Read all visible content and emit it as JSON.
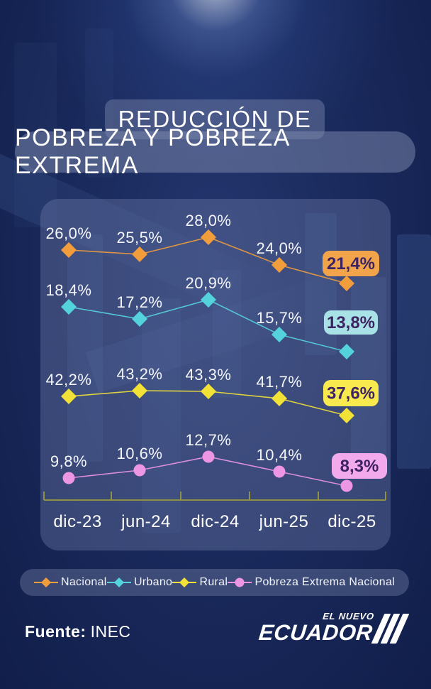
{
  "title": {
    "line1": "REDUCCIÓN DE",
    "line2": "POBREZA Y POBREZA EXTREMA"
  },
  "chart_data": {
    "type": "line",
    "title": "REDUCCIÓN DE POBREZA Y POBREZA EXTREMA",
    "categories": [
      "dic-23",
      "jun-24",
      "dic-24",
      "jun-25",
      "dic-25"
    ],
    "series": [
      {
        "name": "Nacional",
        "marker": "diamond",
        "color": "#F19D3B",
        "badge_color": "#F2A44B",
        "values": [
          26.0,
          25.5,
          28.0,
          24.0,
          21.4
        ],
        "point_labels": [
          "26,0%",
          "25,5%",
          "28,0%",
          "24,0%",
          "21,4%"
        ]
      },
      {
        "name": "Urbano",
        "marker": "diamond",
        "color": "#55D3DD",
        "badge_color": "#A8E1E6",
        "values": [
          18.4,
          17.2,
          20.9,
          15.7,
          13.8
        ],
        "point_labels": [
          "18,4%",
          "17,2%",
          "20,9%",
          "15,7%",
          "13,8%"
        ]
      },
      {
        "name": "Rural",
        "marker": "diamond",
        "color": "#F2E237",
        "badge_color": "#F8E94E",
        "values": [
          42.2,
          43.2,
          43.3,
          41.7,
          37.6
        ],
        "point_labels": [
          "42,2%",
          "43,2%",
          "43,3%",
          "41,7%",
          "37,6%"
        ]
      },
      {
        "name": "Pobreza Extrema Nacional",
        "marker": "circle",
        "color": "#EC96E4",
        "badge_color": "#F2AAEC",
        "values": [
          9.8,
          10.6,
          12.7,
          10.4,
          8.3
        ],
        "point_labels": [
          "9,8%",
          "10,6%",
          "12,7%",
          "10,4%",
          "8,3%"
        ]
      }
    ],
    "value_format": "percent, comma decimal separator",
    "last_value_style": "highlighted badge at right",
    "badge_text_color": "#3D2361",
    "axis_color": "#8F8F45",
    "label_color": "#F4F6FA",
    "xlabel": "",
    "ylabel": "",
    "grid": false,
    "legend_position": "bottom"
  },
  "footer": {
    "source_label": "Fuente:",
    "source_value": "INEC",
    "logo_line1": "EL NUEVO",
    "logo_line2": "ECUADOR"
  }
}
